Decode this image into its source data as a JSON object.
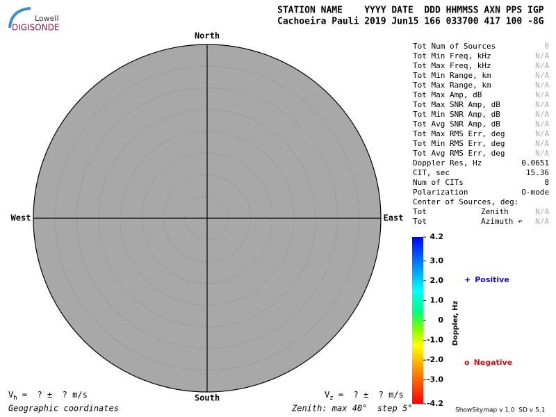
{
  "logo": {
    "top": "Lowell",
    "bottom": "DIGISONDE"
  },
  "header": {
    "line1": "STATION NAME    YYYY DATE  DDD HHMMSS AXN PPS IGP",
    "line2": "Cachoeira Pauli 2019 Jun15 166 033700 417 100 -8G"
  },
  "chart_data": {
    "type": "skymap",
    "directions": {
      "north": "North",
      "south": "South",
      "west": "West",
      "east": "East"
    },
    "rlim": [
      0,
      40
    ],
    "rticks": [
      5,
      10,
      15,
      20,
      25,
      30,
      35
    ],
    "fill": "#a8a8a8",
    "colorbar": {
      "label": "Doppler, Hz",
      "lim": [
        -4.2,
        4.2
      ],
      "ticks": [
        4.2,
        {
          "value": 3,
          "label": "3.0"
        },
        {
          "value": 2,
          "label": "2.0"
        },
        {
          "value": 1,
          "label": "1.0"
        },
        0,
        {
          "value": -1,
          "label": "-1.0"
        },
        {
          "value": -2,
          "label": "-2.0"
        },
        {
          "value": -3,
          "label": "-3.0"
        },
        -4.2
      ]
    },
    "legend": [
      {
        "symbol": "+",
        "name": "Positive",
        "color": "#1010b0"
      },
      {
        "symbol": "o",
        "name": "Negative",
        "color": "#d01010"
      }
    ]
  },
  "stats": [
    {
      "label": "Tot Num of Sources",
      "value": "0"
    },
    {
      "label": "Tot Min Freq, kHz",
      "value": "N/A"
    },
    {
      "label": "Tot Max Freq, kHz",
      "value": "N/A"
    },
    {
      "label": "Tot Min Range, km",
      "value": "N/A"
    },
    {
      "label": "Tot Max Range, km",
      "value": "N/A"
    },
    {
      "label": "Tot Max Amp, dB",
      "value": "N/A"
    },
    {
      "label": "Tot Max SNR Amp, dB",
      "value": "N/A"
    },
    {
      "label": "Tot Min SNR Amp, dB",
      "value": "N/A"
    },
    {
      "label": "Tot Avg SNR Amp, dB",
      "value": "N/A"
    },
    {
      "label": "Tot Max RMS Err, deg",
      "value": "N/A"
    },
    {
      "label": "Tot Min RMS Err, deg",
      "value": "N/A"
    },
    {
      "label": "Tot Avg RMS Err, deg",
      "value": "N/A"
    },
    {
      "label": "Doppler Res, Hz",
      "value": "0.0651"
    },
    {
      "label": "CIT, sec",
      "value": "15.36"
    },
    {
      "label": "Num of CITs",
      "value": "8"
    },
    {
      "label": "Polarization",
      "value": "O-mode"
    },
    {
      "label": "Center of Sources, deg:"
    },
    {
      "label": "Tot",
      "sublabel": "Zenith",
      "value": "N/A"
    },
    {
      "label": "Tot",
      "sublabel": "Azimuth ↶",
      "value": "N/A"
    }
  ],
  "footer": {
    "vh": {
      "symbol": "V",
      "sub": "h",
      "text": " =  ? ±  ? m/s"
    },
    "vz": {
      "symbol": "V",
      "sub": "z",
      "text": " =  ? ±  ? m/s"
    },
    "coords": "Geographic coordinates",
    "zenith": "Zenith: max 40°  step 5°",
    "version": "ShowSkymap v 1.0  SD v 5.1"
  }
}
